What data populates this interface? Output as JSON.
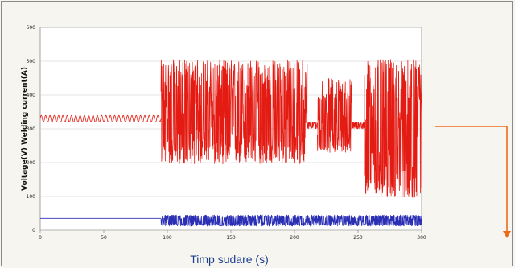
{
  "chart_data": {
    "type": "line",
    "title": "",
    "xlabel": "Timp sudare (s)",
    "ylabel": "Voltage(V) Welding current(A)",
    "xlim": [
      0,
      300
    ],
    "ylim": [
      0,
      600
    ],
    "x_ticks": [
      "0",
      "50",
      "100",
      "150",
      "200",
      "250",
      "300"
    ],
    "y_ticks": [
      "0",
      "100",
      "200",
      "300",
      "400",
      "500",
      "600"
    ],
    "grid": true,
    "legend": "none",
    "colors": {
      "current": "#e41b13",
      "voltage": "#2b2fb4",
      "arrow": "#ef6a18"
    },
    "series": [
      {
        "key": "current",
        "segments": [
          {
            "x": [
              0,
              95
            ],
            "y_center": 330,
            "y_min": 320,
            "y_max": 340,
            "pattern": "sine"
          },
          {
            "x": [
              95,
              210
            ],
            "y_center": 320,
            "y_min": 195,
            "y_max": 505,
            "pattern": "noise"
          },
          {
            "x": [
              210,
              218
            ],
            "y_center": 310,
            "y_min": 300,
            "y_max": 320,
            "pattern": "noise"
          },
          {
            "x": [
              218,
              245
            ],
            "y_center": 320,
            "y_min": 230,
            "y_max": 450,
            "pattern": "noise"
          },
          {
            "x": [
              245,
              255
            ],
            "y_center": 310,
            "y_min": 300,
            "y_max": 320,
            "pattern": "noise"
          },
          {
            "x": [
              255,
              300
            ],
            "y_center": 270,
            "y_min": 95,
            "y_max": 505,
            "pattern": "noise"
          }
        ]
      },
      {
        "key": "voltage",
        "segments": [
          {
            "x": [
              0,
              95
            ],
            "y_center": 35,
            "y_min": 33,
            "y_max": 37,
            "pattern": "flat"
          },
          {
            "x": [
              95,
              300
            ],
            "y_center": 28,
            "y_min": 12,
            "y_max": 45,
            "pattern": "noise"
          }
        ]
      }
    ]
  }
}
